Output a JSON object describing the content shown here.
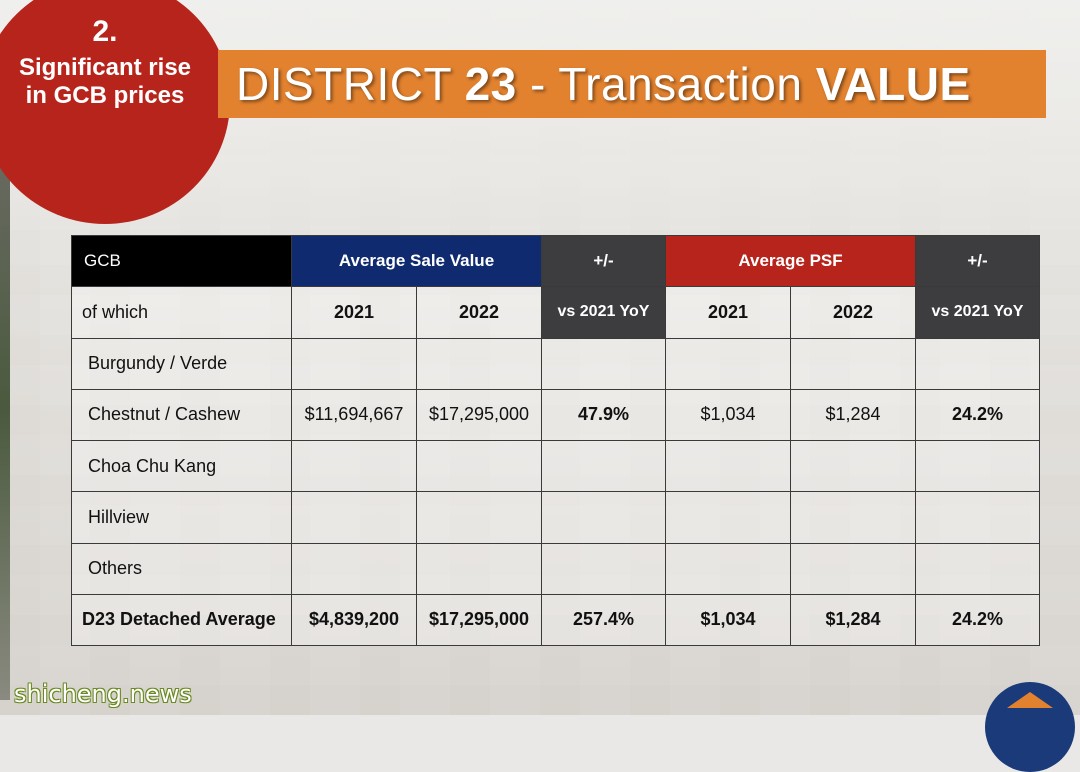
{
  "badge": {
    "number": "2.",
    "caption": "Significant rise in GCB prices"
  },
  "banner": {
    "title_part1": "DISTRICT ",
    "title_bold1": "23",
    "title_part2": " - Transaction ",
    "title_bold2": "VALUE"
  },
  "table": {
    "header": {
      "gcb": "GCB",
      "avg_sale_value": "Average Sale Value",
      "change1": "+/-",
      "avg_psf": "Average PSF",
      "change2": "+/-"
    },
    "subheader": {
      "label": "of which",
      "y2021_a": "2021",
      "y2022_a": "2022",
      "yoy_a": "vs 2021 YoY",
      "y2021_b": "2021",
      "y2022_b": "2022",
      "yoy_b": "vs 2021 YoY"
    },
    "rows": [
      {
        "name": "Burgundy / Verde",
        "v2021": "",
        "v2022": "",
        "chg": "",
        "p2021": "",
        "p2022": "",
        "pchg": ""
      },
      {
        "name": "Chestnut / Cashew",
        "v2021": "$11,694,667",
        "v2022": "$17,295,000",
        "chg": "47.9%",
        "p2021": "$1,034",
        "p2022": "$1,284",
        "pchg": "24.2%"
      },
      {
        "name": "Choa Chu Kang",
        "v2021": "",
        "v2022": "",
        "chg": "",
        "p2021": "",
        "p2022": "",
        "pchg": ""
      },
      {
        "name": "Hillview",
        "v2021": "",
        "v2022": "",
        "chg": "",
        "p2021": "",
        "p2022": "",
        "pchg": ""
      },
      {
        "name": "Others",
        "v2021": "",
        "v2022": "",
        "chg": "",
        "p2021": "",
        "p2022": "",
        "pchg": ""
      }
    ],
    "total": {
      "name": "D23 Detached Average",
      "v2021": "$4,839,200",
      "v2022": "$17,295,000",
      "chg": "257.4%",
      "p2021": "$1,034",
      "p2022": "$1,284",
      "pchg": "24.2%"
    }
  },
  "watermark": "shicheng.news",
  "colors": {
    "badge_red": "#b7241c",
    "banner_orange": "#e2822f",
    "header_blue": "#0f2a6e",
    "header_red": "#b7241c",
    "header_dark": "#3d3d40",
    "change_blue": "#2f6fc4"
  }
}
